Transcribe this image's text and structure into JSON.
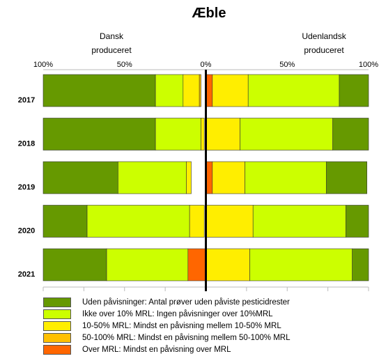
{
  "chart_data": {
    "type": "bar",
    "title": "Æble",
    "left_label": "Dansk\nproduceret",
    "right_label": "Udenlandsk\nproduceret",
    "tick_labels": [
      "100%",
      "50%",
      "0%",
      "50%",
      "100%"
    ],
    "categories": [
      "2017",
      "2018",
      "2019",
      "2020",
      "2021"
    ],
    "xlim": [
      -100,
      100
    ],
    "series": [
      {
        "name": "Uden påvisninger: Antal prøver uden påviste pesticidrester",
        "color": "#669900",
        "dansk": [
          69,
          69,
          46,
          27,
          39
        ],
        "udenlandsk": [
          18,
          22,
          25,
          14,
          10
        ]
      },
      {
        "name": "Ikke over 10% MRL: Ingen påvisninger over 10%MRL",
        "color": "#ccff00",
        "dansk": [
          17,
          28,
          42,
          63,
          50
        ],
        "udenlandsk": [
          56,
          57,
          50,
          57,
          63
        ]
      },
      {
        "name": "10-50% MRL: Mindst en påvisning mellem 10-50% MRL",
        "color": "#ffee00",
        "dansk": [
          10,
          2,
          3,
          9,
          0
        ],
        "udenlandsk": [
          22,
          21,
          20,
          29,
          27
        ]
      },
      {
        "name": "50-100% MRL: Mindst en påvisning mellem 50-100% MRL",
        "color": "#ffc000",
        "dansk": [
          1,
          0,
          0,
          0,
          0
        ],
        "udenlandsk": [
          0,
          0,
          0,
          0,
          0
        ]
      },
      {
        "name": "Over MRL:  Mindst en påvisning over MRL",
        "color": "#ff6600",
        "dansk": [
          0,
          0,
          0,
          0,
          11
        ],
        "udenlandsk": [
          4,
          0,
          4,
          0,
          0
        ]
      }
    ]
  }
}
